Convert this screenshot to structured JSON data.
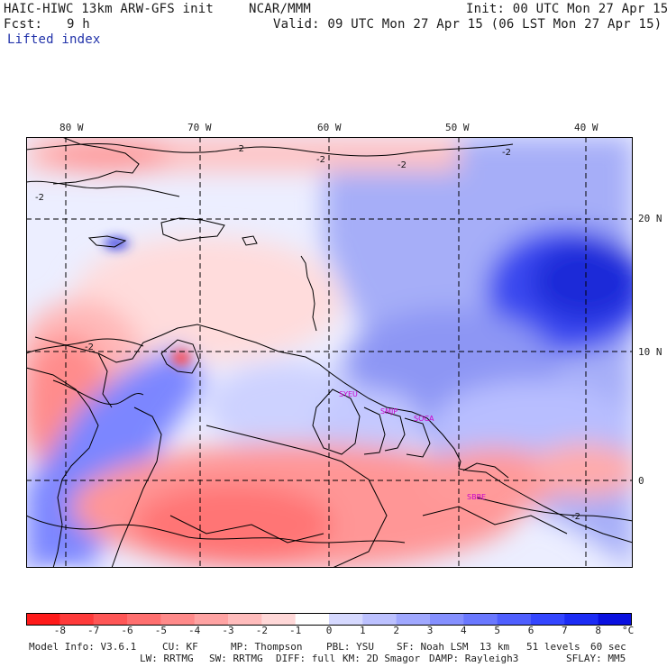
{
  "header": {
    "model_title": "HAIC-HIWC 13km ARW-GFS init",
    "institution": "NCAR/MMM",
    "init_time": "Init: 00 UTC Mon 27 Apr 15",
    "forecast_label": "Fcst:",
    "forecast_hours": "9 h",
    "valid_time": "Valid: 09 UTC Mon 27 Apr 15 (06 LST Mon 27 Apr 15)",
    "field_name": "Lifted index"
  },
  "map": {
    "longitude_labels": [
      "80 W",
      "70 W",
      "60 W",
      "50 W",
      "40 W"
    ],
    "latitude_labels": [
      "20 N",
      "10 N",
      "0"
    ],
    "station_labels": [
      "SYEU",
      "SMJP",
      "SOCA",
      "SBBE"
    ],
    "contour_labels": [
      "-2",
      "-2",
      "-2",
      "-2",
      "-2",
      "-2",
      "-2"
    ],
    "colors": {
      "frame": "#000000",
      "grid": "#000000",
      "coast": "#000000",
      "stations": "#cc00cc"
    }
  },
  "colorbar": {
    "unit": "°C",
    "labels": [
      "-8",
      "-7",
      "-6",
      "-5",
      "-4",
      "-3",
      "-2",
      "-1",
      "0",
      "1",
      "2",
      "3",
      "4",
      "5",
      "6",
      "7",
      "8"
    ],
    "colors": [
      "#ff1a1a",
      "#ff3a3a",
      "#ff5656",
      "#ff6f6f",
      "#ff8a8a",
      "#ffa3a3",
      "#ffbcbc",
      "#ffd8d8",
      "#ffffff",
      "#d6d9ff",
      "#bcc1ff",
      "#a0a8ff",
      "#8590ff",
      "#6a78ff",
      "#4f5fff",
      "#3446ff",
      "#1c2cf5",
      "#0a10e0"
    ]
  },
  "footer": {
    "line1": {
      "model_info": "Model Info: V3.6.1",
      "cu": "CU: KF",
      "mp": "MP: Thompson",
      "pbl": "PBL: YSU",
      "sf": "SF: Noah LSM",
      "res": "13 km",
      "levels": "51 levels",
      "dt": "60 sec"
    },
    "line2": {
      "lw": "LW: RRTMG",
      "sw": "SW: RRTMG",
      "diff": "DIFF: full",
      "km": "KM: 2D Smagor",
      "damp": "DAMP: Rayleigh3",
      "sflay": "SFLAY: MM5"
    }
  }
}
